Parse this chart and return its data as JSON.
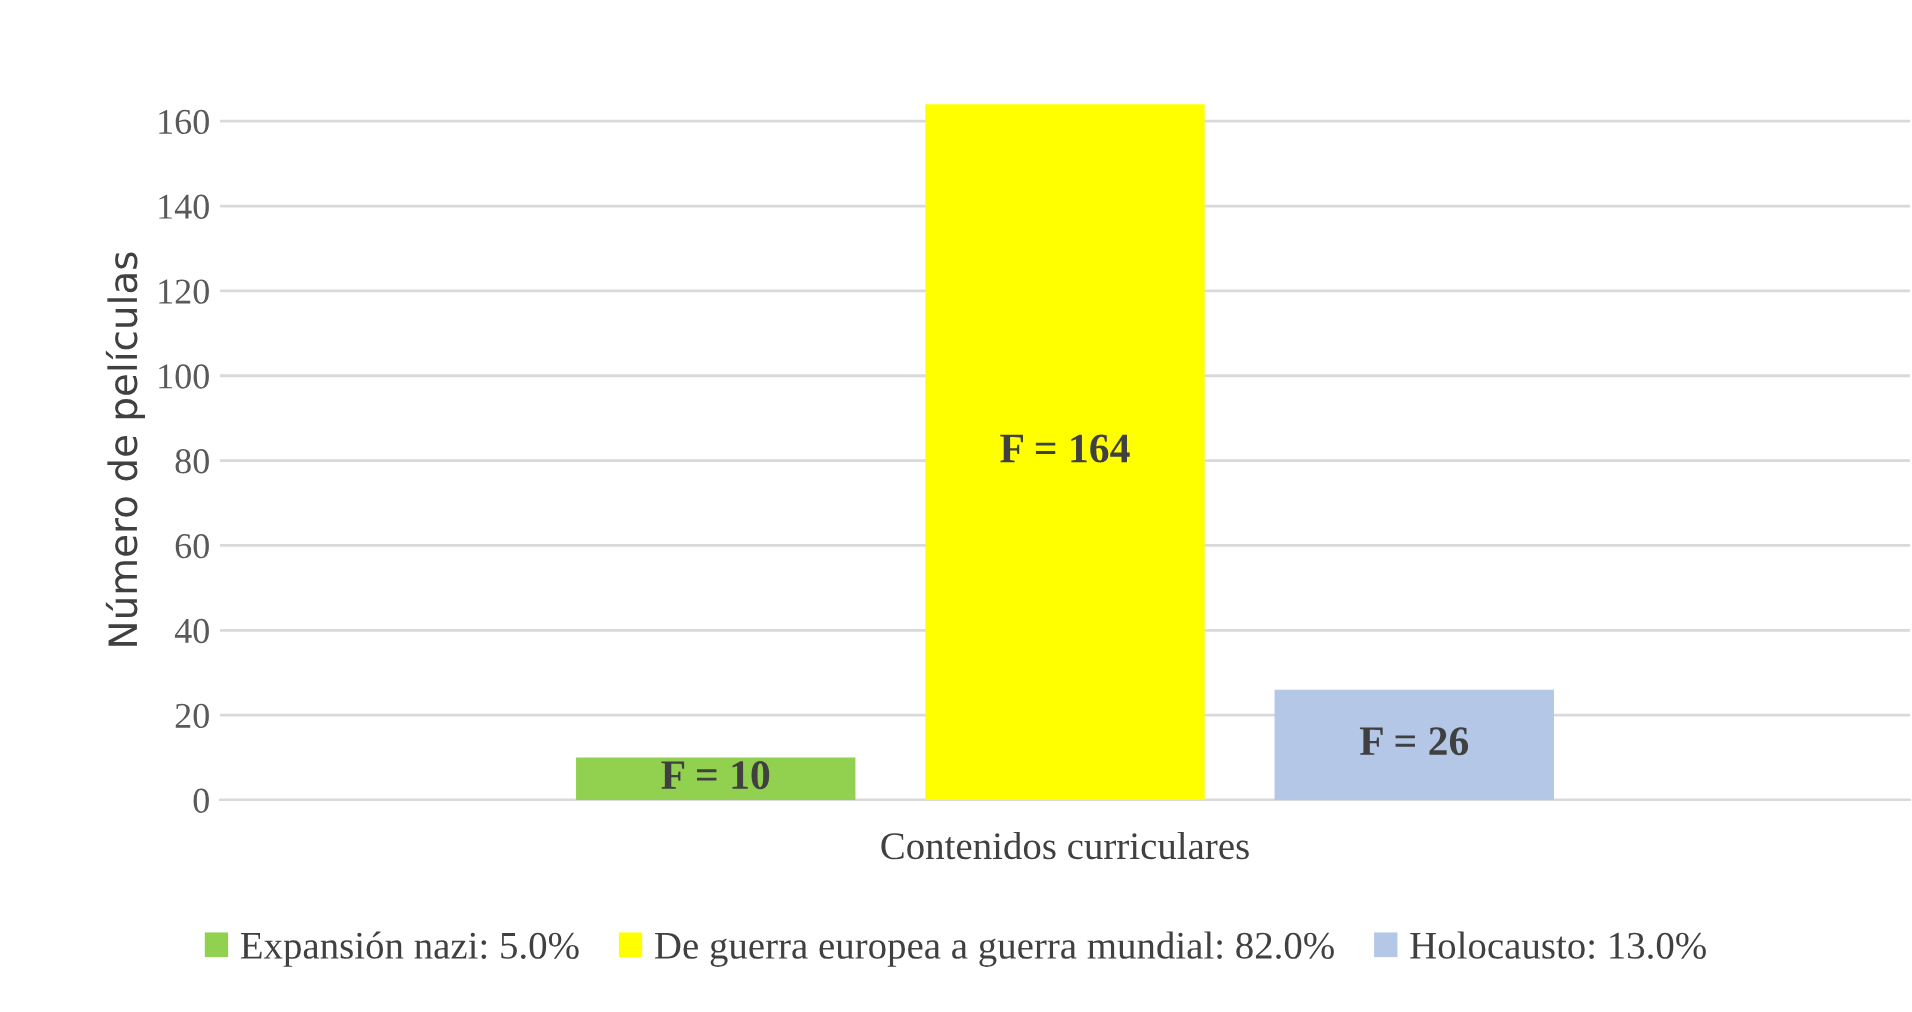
{
  "chart_data": {
    "type": "bar",
    "xlabel": "Contenidos curriculares",
    "ylabel": "Número de películas",
    "categories": [
      null
    ],
    "series": [
      {
        "name": "Expansión nazi: 5.0%",
        "color": "#92d050",
        "values": [
          10
        ],
        "value_labels": [
          "F = 10"
        ]
      },
      {
        "name": "De guerra europea a guerra mundial: 82.0%",
        "color": "#ffff00",
        "values": [
          164
        ],
        "value_labels": [
          "F = 164"
        ]
      },
      {
        "name": "Holocausto: 13.0%",
        "color": "#b4c7e7",
        "values": [
          26
        ],
        "value_labels": [
          "F = 26"
        ]
      }
    ],
    "ylim": [
      0,
      165
    ],
    "yticks": [
      0,
      20,
      40,
      60,
      80,
      100,
      120,
      140,
      160
    ],
    "grid": "y",
    "legend": "bottom"
  }
}
